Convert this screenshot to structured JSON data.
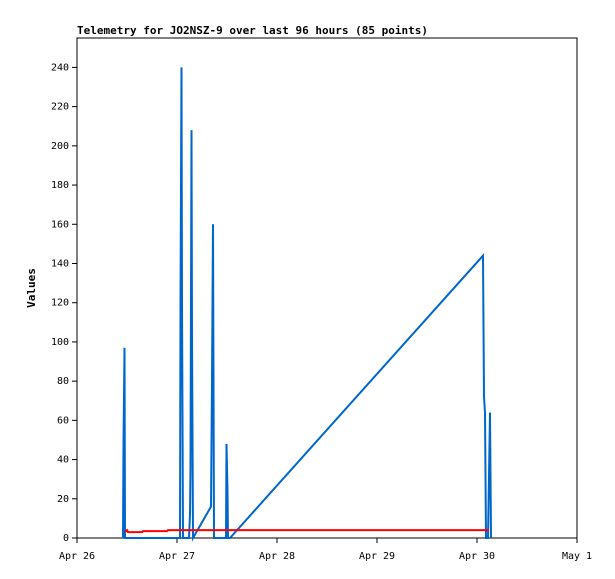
{
  "chart_data": {
    "type": "line",
    "title": "Telemetry for JO2NSZ-9 over last 96 hours (85 points)",
    "y_label": "Values",
    "xlim": [
      26,
      31
    ],
    "xticks": [
      {
        "value": 26,
        "label": "Apr 26"
      },
      {
        "value": 27,
        "label": "Apr 27"
      },
      {
        "value": 28,
        "label": "Apr 28"
      },
      {
        "value": 29,
        "label": "Apr 29"
      },
      {
        "value": 30,
        "label": "Apr 30"
      },
      {
        "value": 31,
        "label": "May 1"
      }
    ],
    "ylim": [
      0,
      255
    ],
    "yticks": [
      0,
      20,
      40,
      60,
      80,
      100,
      120,
      140,
      160,
      180,
      200,
      220,
      240
    ],
    "grid": false,
    "series": [
      {
        "color": "#0066cc",
        "x": [
          26.46,
          26.465,
          26.475,
          26.48,
          27.03,
          27.035,
          27.045,
          27.05,
          27.06,
          27.12,
          27.13,
          27.135,
          27.145,
          27.15,
          27.16,
          27.34,
          27.35,
          27.36,
          27.37,
          27.49,
          27.495,
          27.505,
          27.51,
          27.53,
          30.06,
          30.07,
          30.08,
          30.09,
          30.11,
          30.12,
          30.13,
          30.14
        ],
        "values": [
          0,
          48,
          97,
          0,
          0,
          120,
          240,
          120,
          0,
          0,
          12,
          36,
          208,
          104,
          0,
          16,
          80,
          160,
          0,
          0,
          48,
          24,
          0,
          0,
          144,
          72,
          64,
          0,
          0,
          32,
          64,
          0
        ]
      },
      {
        "color": "#ff0000",
        "x": [
          26.48,
          26.5,
          26.51,
          26.65,
          26.66,
          26.9,
          26.91,
          30.12
        ],
        "values": [
          3,
          4,
          3,
          3,
          3.5,
          3.5,
          4,
          4
        ]
      }
    ]
  }
}
